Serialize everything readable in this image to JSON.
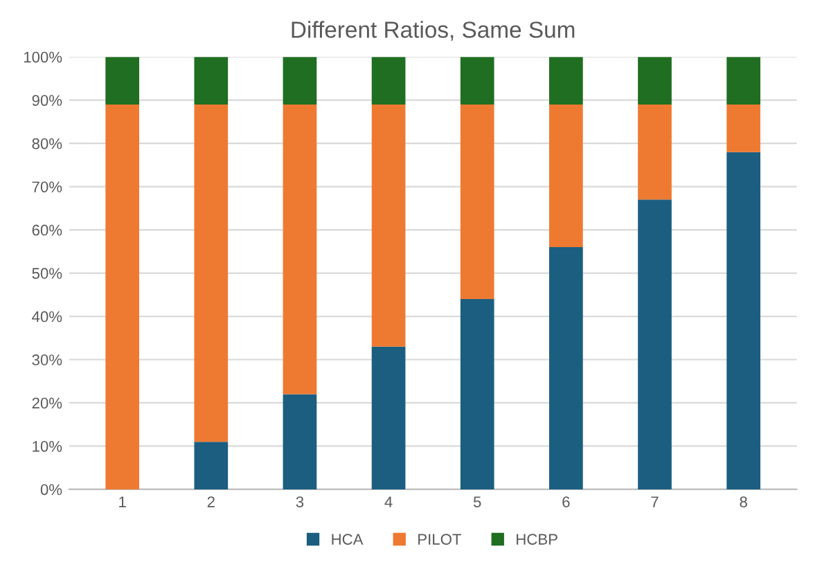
{
  "chart_data": {
    "type": "bar",
    "title": "Different Ratios, Same Sum",
    "stacked": true,
    "categories": [
      "1",
      "2",
      "3",
      "4",
      "5",
      "6",
      "7",
      "8"
    ],
    "series": [
      {
        "name": "HCA",
        "color": "#1b5e80",
        "values": [
          0,
          11,
          22,
          33,
          44,
          56,
          67,
          78
        ]
      },
      {
        "name": "PILOT",
        "color": "#ee7a32",
        "values": [
          89,
          78,
          67,
          56,
          45,
          33,
          22,
          11
        ]
      },
      {
        "name": "HCBP",
        "color": "#1f6e21",
        "values": [
          11,
          11,
          11,
          11,
          11,
          11,
          11,
          11
        ]
      }
    ],
    "ylim": [
      0,
      100
    ],
    "yticks": [
      {
        "value": 0,
        "label": "0%"
      },
      {
        "value": 10,
        "label": "10%"
      },
      {
        "value": 20,
        "label": "20%"
      },
      {
        "value": 30,
        "label": "30%"
      },
      {
        "value": 40,
        "label": "40%"
      },
      {
        "value": 50,
        "label": "50%"
      },
      {
        "value": 60,
        "label": "60%"
      },
      {
        "value": 70,
        "label": "70%"
      },
      {
        "value": 80,
        "label": "80%"
      },
      {
        "value": 90,
        "label": "90%"
      },
      {
        "value": 100,
        "label": "100%"
      }
    ],
    "grid": "y",
    "legend": "bottom"
  }
}
